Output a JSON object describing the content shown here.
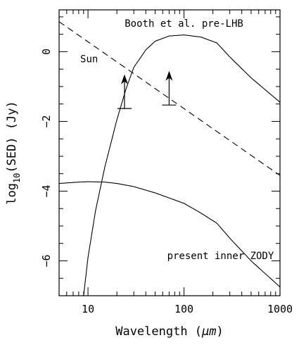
{
  "chart_data": {
    "type": "line",
    "title": "",
    "xlabel": "Wavelength (μm)",
    "xlabel_prefix": "Wavelength (",
    "xlabel_unit": "μm",
    "xlabel_suffix": ")",
    "ylabel": "log10(SED) (Jy)",
    "ylabel_prefix": "log",
    "ylabel_sub": "10",
    "ylabel_suffix": "(SED) (Jy)",
    "xscale": "log",
    "xlim": [
      5,
      1000
    ],
    "ylim": [
      -7,
      1.2
    ],
    "x_ticks": [
      10,
      100,
      1000
    ],
    "x_tick_labels": [
      "10",
      "100",
      "1000"
    ],
    "y_ticks": [
      0,
      -2,
      -4,
      -6
    ],
    "y_tick_labels": [
      "0",
      "−2",
      "−4",
      "−6"
    ],
    "grid": false,
    "series": [
      {
        "name": "Booth et al. pre-LHB",
        "style": "solid",
        "x": [
          9,
          10,
          12,
          15,
          20,
          25,
          30,
          40,
          50,
          70,
          100,
          150,
          220,
          300,
          500,
          1000
        ],
        "y": [
          -7,
          -5.9,
          -4.55,
          -3.3,
          -1.95,
          -1.05,
          -0.45,
          0.05,
          0.3,
          0.45,
          0.48,
          0.42,
          0.25,
          -0.15,
          -0.75,
          -1.45
        ]
      },
      {
        "name": "Sun",
        "style": "dashed",
        "x": [
          5,
          1000
        ],
        "y": [
          0.86,
          -3.55
        ]
      },
      {
        "name": "present inner ZODY",
        "style": "solid",
        "x": [
          5,
          8,
          10,
          15,
          20,
          30,
          50,
          100,
          150,
          220,
          300,
          500,
          1000
        ],
        "y": [
          -3.78,
          -3.74,
          -3.73,
          -3.74,
          -3.78,
          -3.87,
          -4.05,
          -4.35,
          -4.63,
          -4.92,
          -5.35,
          -6,
          -6.75
        ]
      }
    ],
    "limits": [
      {
        "x": 24,
        "y": -1.63,
        "arrow_to": -0.65
      },
      {
        "x": 70,
        "y": -1.53,
        "arrow_to": -0.55
      }
    ],
    "annotations": [
      {
        "text": "Booth et al. pre-LHB",
        "x": 100,
        "y": 0.72,
        "anchor": "middle"
      },
      {
        "text": "Sun",
        "x": 8.3,
        "y": -0.3,
        "anchor": "start"
      },
      {
        "text": "present inner ZODY",
        "x": 240,
        "y": -5.95,
        "anchor": "middle"
      }
    ]
  }
}
